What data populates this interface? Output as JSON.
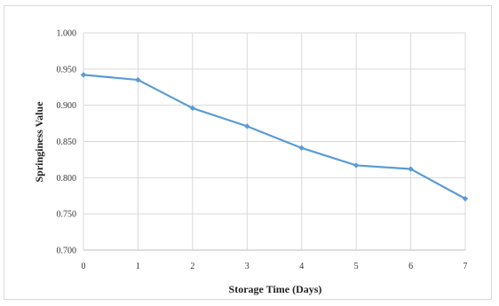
{
  "chart_data": {
    "type": "line",
    "title": "",
    "xlabel": "Storage Time (Days)",
    "ylabel": "Springiness Value",
    "x": [
      0,
      1,
      2,
      3,
      4,
      5,
      6,
      7
    ],
    "xticks": [
      "0",
      "1",
      "2",
      "3",
      "4",
      "5",
      "6",
      "7"
    ],
    "yticks": [
      "0.700",
      "0.750",
      "0.800",
      "0.850",
      "0.900",
      "0.950",
      "1.000"
    ],
    "ylim": [
      0.7,
      1.0
    ],
    "xlim": [
      0,
      7
    ],
    "grid": true,
    "series": [
      {
        "values": [
          0.942,
          0.935,
          0.896,
          0.871,
          0.841,
          0.817,
          0.812,
          0.771
        ]
      }
    ],
    "colors": {
      "line": "#5b9bd5",
      "grid": "#d9d9d9",
      "axis": "#bfbfbf"
    }
  }
}
